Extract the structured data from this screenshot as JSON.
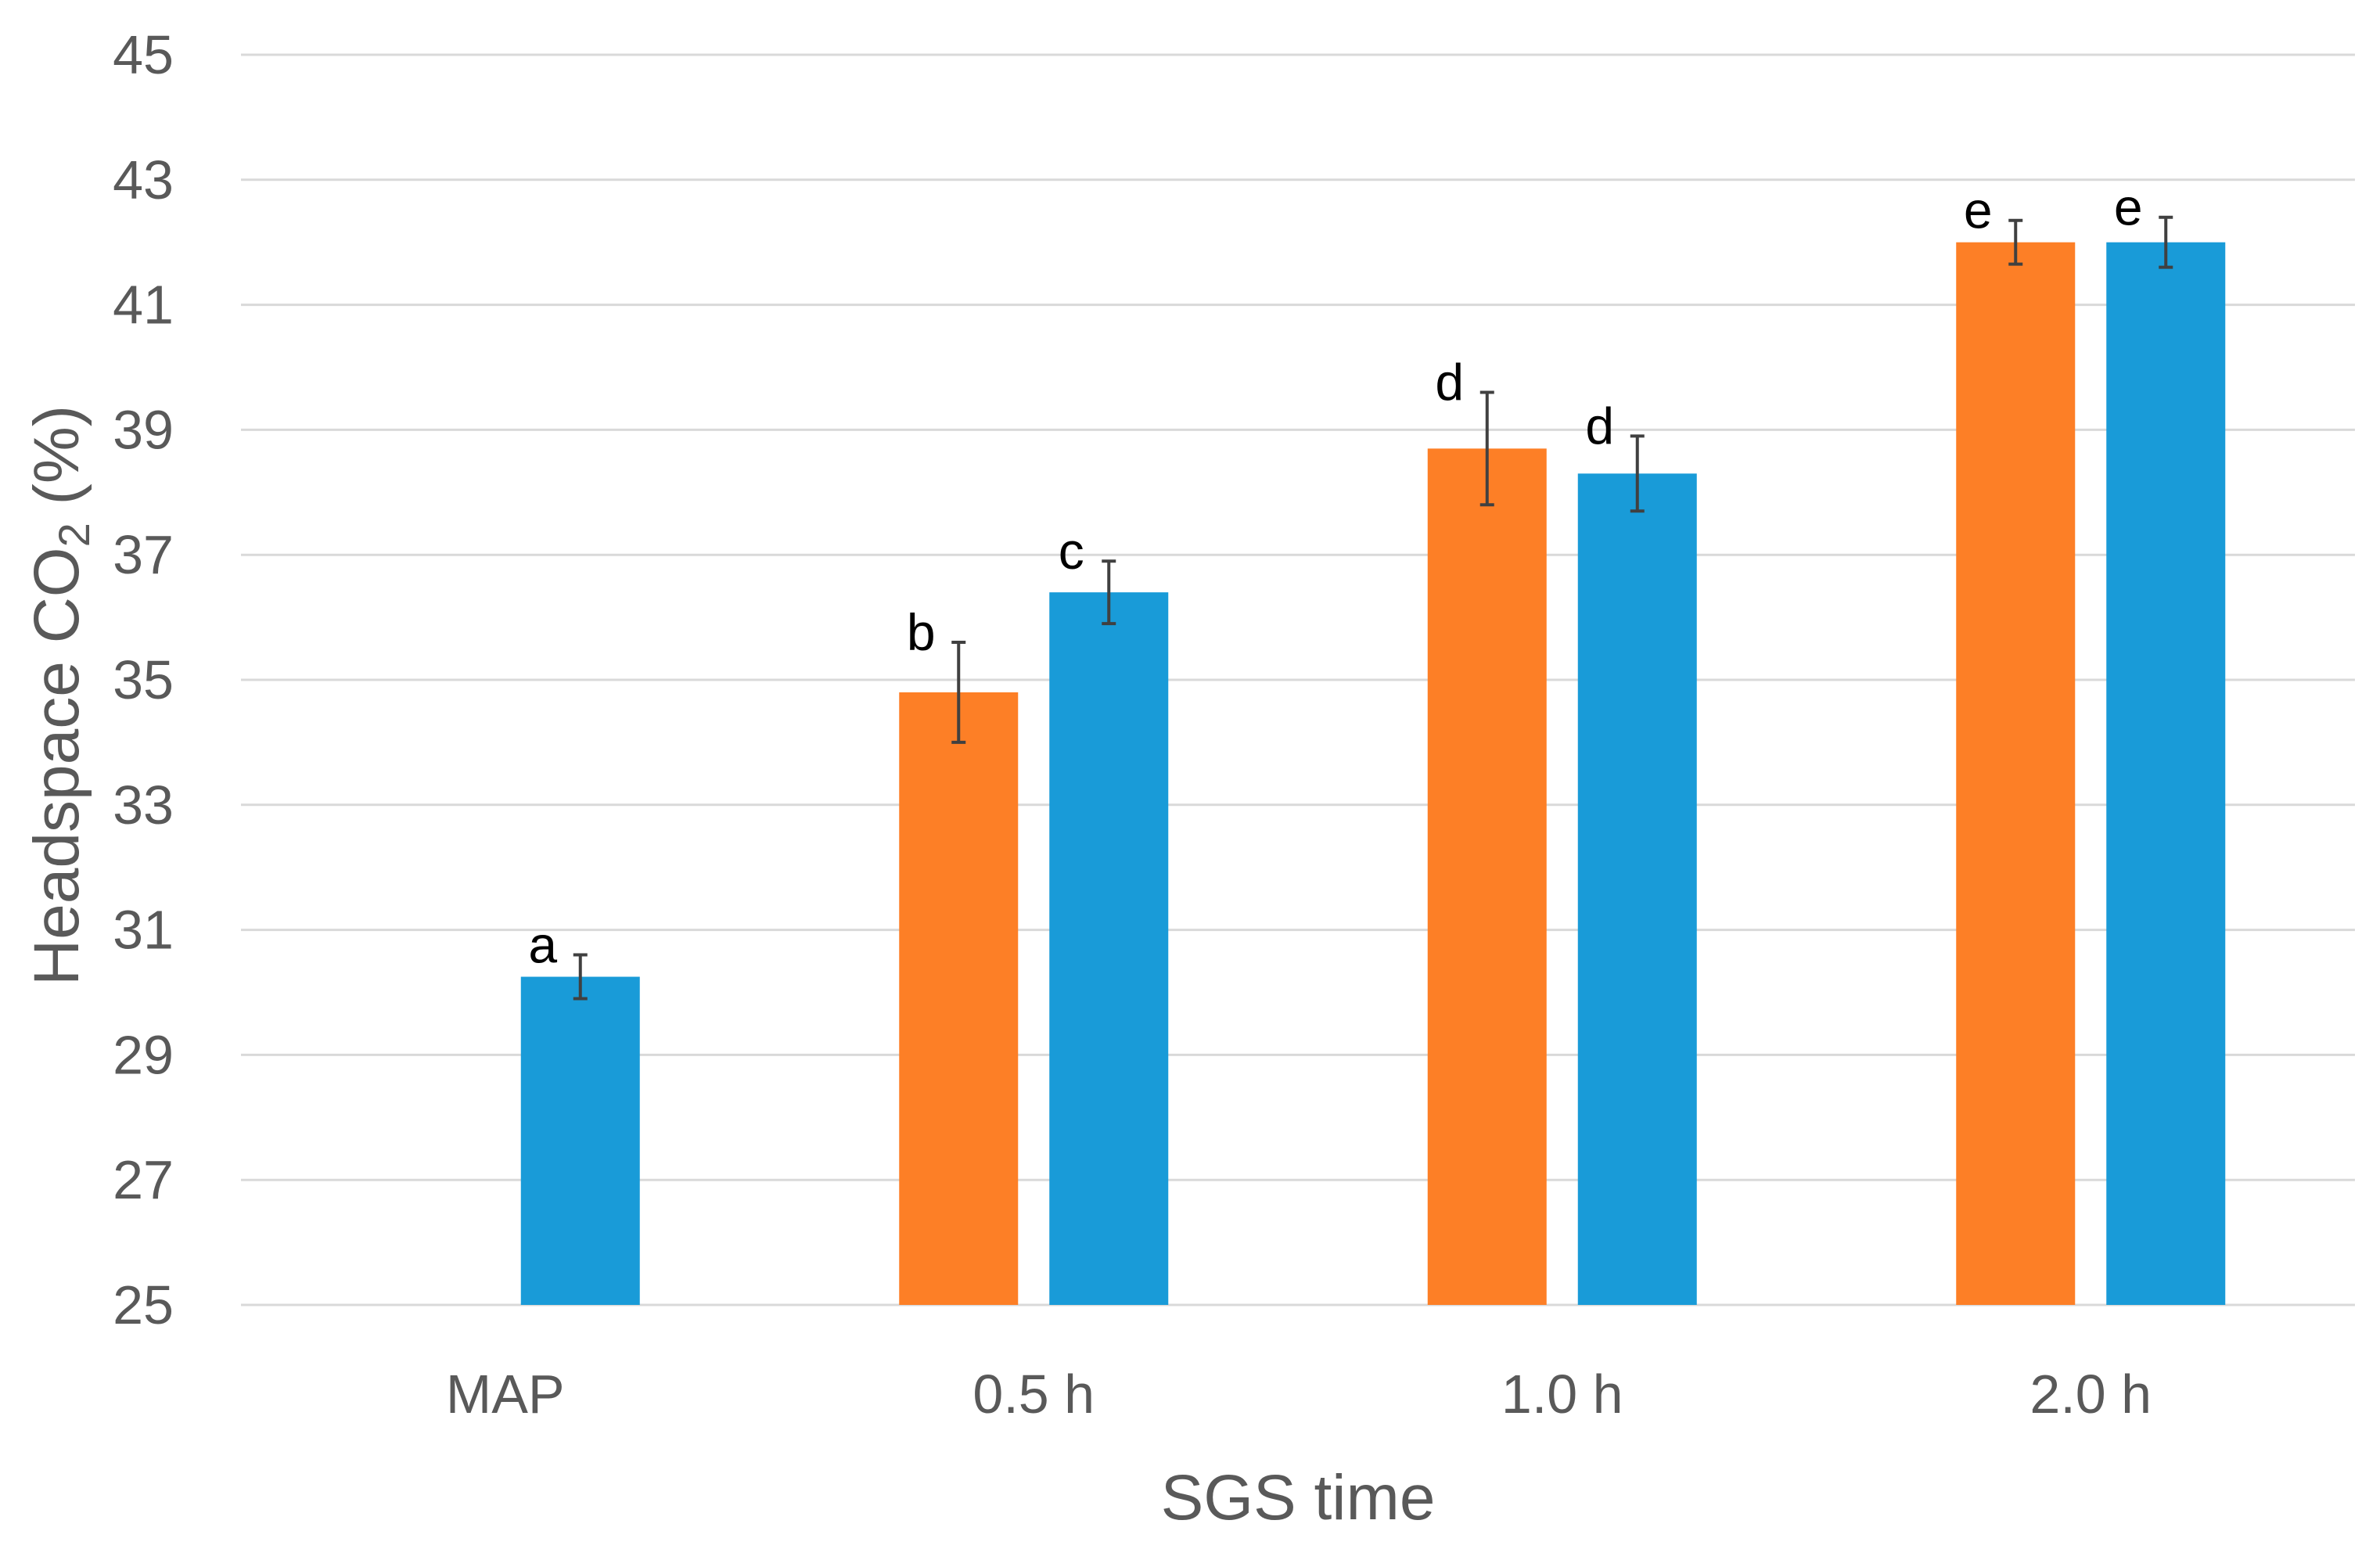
{
  "chart_data": {
    "type": "bar",
    "title": "",
    "xlabel": "SGS time",
    "ylabel": {
      "prefix": "Headspace CO",
      "subscript": "2",
      "suffix": " (%)"
    },
    "ylim": [
      25,
      45
    ],
    "yticks": [
      "25",
      "27",
      "29",
      "31",
      "33",
      "35",
      "37",
      "39",
      "41",
      "43",
      "45"
    ],
    "grid": true,
    "legend": "none",
    "categories": [
      "MAP",
      "0.5 h",
      "1.0 h",
      "2.0 h"
    ],
    "series": [
      {
        "name": "series-orange",
        "color": "#fd7f26",
        "values": [
          null,
          34.8,
          38.7,
          42.0
        ],
        "errors": [
          null,
          0.8,
          0.9,
          0.35
        ],
        "letters": [
          null,
          "b",
          "d",
          "e"
        ]
      },
      {
        "name": "series-blue",
        "color": "#199bd8",
        "values": [
          30.25,
          36.4,
          38.3,
          42.0
        ],
        "errors": [
          0.35,
          0.5,
          0.6,
          0.4
        ],
        "letters": [
          "a",
          "c",
          "d",
          "e"
        ]
      }
    ]
  }
}
